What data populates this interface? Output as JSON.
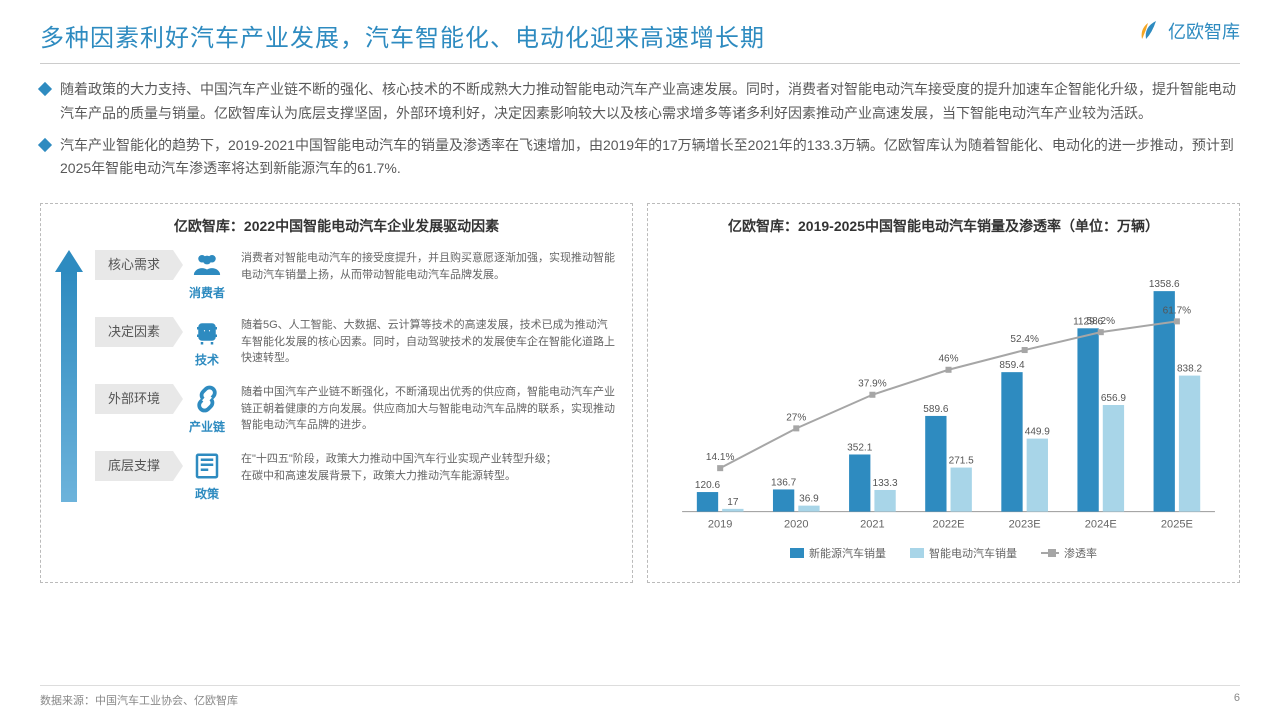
{
  "header": {
    "title": "多种因素利好汽车产业发展，汽车智能化、电动化迎来高速增长期",
    "brand": "亿欧智库"
  },
  "bullets": [
    "随着政策的大力支持、中国汽车产业链不断的强化、核心技术的不断成熟大力推动智能电动汽车产业高速发展。同时，消费者对智能电动汽车接受度的提升加速车企智能化升级，提升智能电动汽车产品的质量与销量。亿欧智库认为底层支撑坚固，外部环境利好，决定因素影响较大以及核心需求增多等诸多利好因素推动产业高速发展，当下智能电动汽车产业较为活跃。",
    "汽车产业智能化的趋势下，2019-2021中国智能电动汽车的销量及渗透率在飞速增加，由2019年的17万辆增长至2021年的133.3万辆。亿欧智库认为随着智能化、电动化的进一步推动，预计到2025年智能电动汽车渗透率将达到新能源汽车的61.7%."
  ],
  "leftPanel": {
    "title": "亿欧智库：2022中国智能电动汽车企业发展驱动因素",
    "factors": [
      {
        "tag": "核心需求",
        "icon": "users",
        "iconLabel": "消费者",
        "desc": "消费者对智能电动汽车的接受度提升，并且购买意愿逐渐加强，实现推动智能电动汽车销量上扬，从而带动智能电动汽车品牌发展。"
      },
      {
        "tag": "决定因素",
        "icon": "chip",
        "iconLabel": "技术",
        "desc": "随着5G、人工智能、大数据、云计算等技术的高速发展，技术已成为推动汽车智能化发展的核心因素。同时，自动驾驶技术的发展使车企在智能化道路上快速转型。"
      },
      {
        "tag": "外部环境",
        "icon": "link",
        "iconLabel": "产业链",
        "desc": "随着中国汽车产业链不断强化，不断涌现出优秀的供应商，智能电动汽车产业链正朝着健康的方向发展。供应商加大与智能电动汽车品牌的联系，实现推动智能电动汽车品牌的进步。"
      },
      {
        "tag": "底层支撑",
        "icon": "doc",
        "iconLabel": "政策",
        "desc": "在\"十四五\"阶段，政策大力推动中国汽车行业实现产业转型升级；\n在碳中和高速发展背景下，政策大力推动汽车能源转型。"
      }
    ]
  },
  "rightPanel": {
    "title": "亿欧智库：2019-2025中国智能电动汽车销量及渗透率（单位：万辆）",
    "chart": {
      "type": "bar-line-combo",
      "categories": [
        "2019",
        "2020",
        "2021",
        "2022E",
        "2023E",
        "2024E",
        "2025E"
      ],
      "series1": {
        "name": "新能源汽车销量",
        "color": "#2e8bc0",
        "values": [
          120.6,
          136.7,
          352.1,
          589.6,
          859.4,
          1129.6,
          1358.6
        ]
      },
      "series2": {
        "name": "智能电动汽车销量",
        "color": "#a8d5e8",
        "values": [
          17.0,
          36.9,
          133.3,
          271.5,
          449.9,
          656.9,
          838.2
        ]
      },
      "lineSeries": {
        "name": "渗透率",
        "color": "#a6a6a6",
        "marker": "square",
        "values": [
          14.1,
          27.0,
          37.9,
          46.0,
          52.4,
          58.2,
          61.7
        ],
        "unit": "%"
      },
      "yMax": 1400,
      "pctMax": 70,
      "label_fontsize": 10,
      "background": "#ffffff"
    },
    "legend": [
      "新能源汽车销量",
      "智能电动汽车销量",
      "渗透率"
    ]
  },
  "footer": {
    "source": "数据来源：中国汽车工业协会、亿欧智库",
    "page": "6"
  }
}
